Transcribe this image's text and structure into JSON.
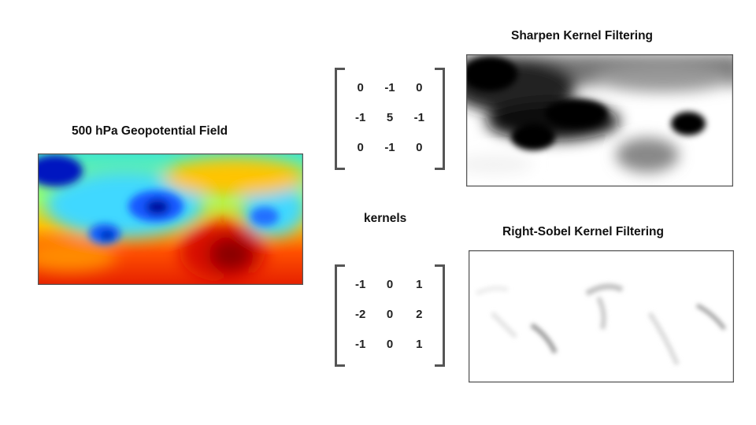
{
  "input": {
    "title": "500 hPa Geopotential Field",
    "border_color": "#555555"
  },
  "sharpen": {
    "title": "Sharpen Kernel Filtering",
    "kernel": [
      [
        "0",
        "-1",
        "0"
      ],
      [
        "-1",
        "5",
        "-1"
      ],
      [
        "0",
        "-1",
        "0"
      ]
    ]
  },
  "sobel": {
    "title": "Right-Sobel Kernel Filtering",
    "kernel": [
      [
        "-1",
        "0",
        "1"
      ],
      [
        "-2",
        "0",
        "2"
      ],
      [
        "-1",
        "0",
        "1"
      ]
    ]
  },
  "kernels_label": "kernels",
  "colors": {
    "field_low": "#0028d0",
    "field_mid": "#20c8ff",
    "field_mid2": "#60ffa0",
    "field_high": "#ff6a00",
    "field_peak": "#b00000",
    "matrix_bracket": "#555555"
  }
}
